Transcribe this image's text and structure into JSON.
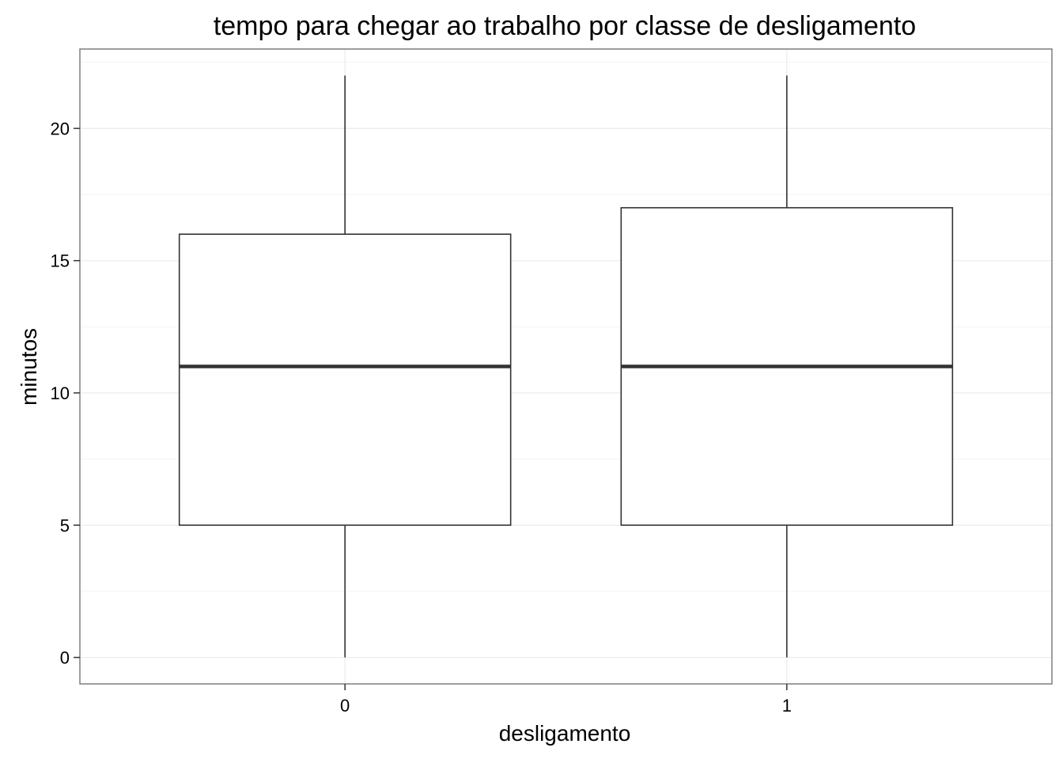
{
  "chart_data": {
    "type": "boxplot",
    "title": "tempo para chegar ao trabalho por classe de desligamento",
    "xlabel": "desligamento",
    "ylabel": "minutos",
    "categories": [
      "0",
      "1"
    ],
    "boxes": [
      {
        "category": "0",
        "min": 0,
        "q1": 5,
        "median": 11,
        "q3": 16,
        "max": 22
      },
      {
        "category": "1",
        "min": 0,
        "q1": 5,
        "median": 11,
        "q3": 17,
        "max": 22
      }
    ],
    "yticks": [
      0,
      5,
      10,
      15,
      20
    ],
    "ylim": [
      -1,
      23
    ],
    "grid": true,
    "legend": "none",
    "colors": {
      "box_fill": "#ffffff",
      "box_stroke": "#333333",
      "grid": "#ebebeb",
      "panel_border": "#7f7f7f"
    }
  }
}
